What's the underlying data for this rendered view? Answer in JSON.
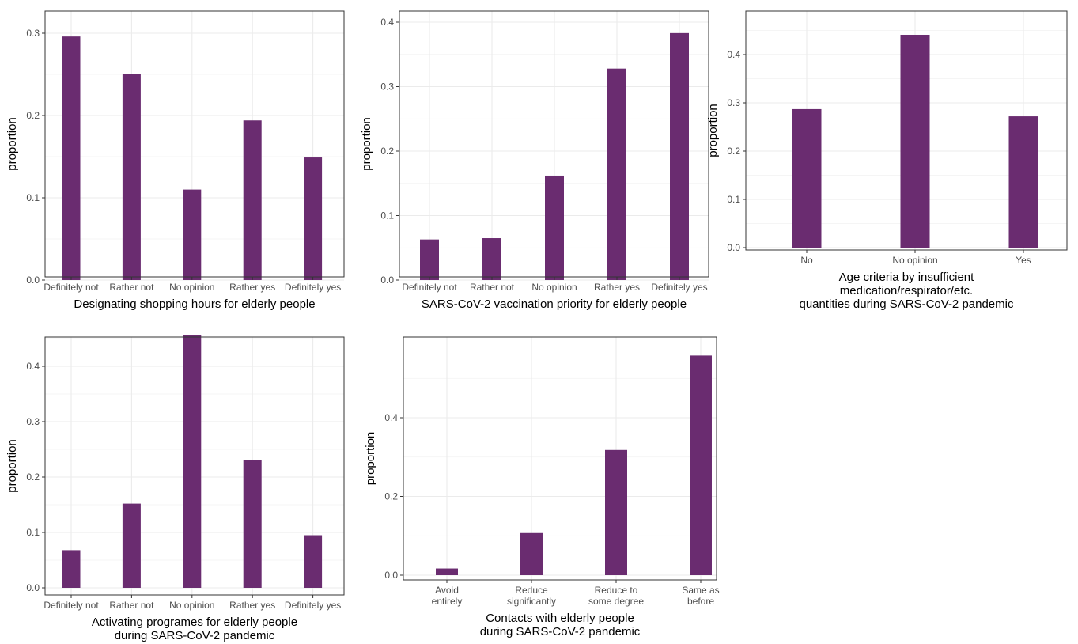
{
  "chart_data": [
    {
      "type": "bar",
      "categories": [
        [
          "Definitely not"
        ],
        [
          "Rather not"
        ],
        [
          "No opinion"
        ],
        [
          "Rather yes"
        ],
        [
          "Definitely yes"
        ]
      ],
      "values": [
        0.296,
        0.25,
        0.11,
        0.194,
        0.149
      ],
      "ylabel": "proportion",
      "xlabel": [
        "Designating shopping hours for elderly people"
      ],
      "ylim": [
        0,
        0.3
      ],
      "yticks": [
        0.0,
        0.1,
        0.2,
        0.3
      ],
      "ytick_labels": [
        "0.0",
        "0.1",
        "0.2",
        "0.3"
      ],
      "color": "#6a2c70",
      "grid": true
    },
    {
      "type": "bar",
      "categories": [
        [
          "Definitely not"
        ],
        [
          "Rather not"
        ],
        [
          "No opinion"
        ],
        [
          "Rather yes"
        ],
        [
          "Definitely yes"
        ]
      ],
      "values": [
        0.063,
        0.065,
        0.162,
        0.328,
        0.383
      ],
      "ylabel": "proportion",
      "xlabel": [
        "SARS-CoV-2 vaccination priority for elderly people"
      ],
      "ylim": [
        0,
        0.4
      ],
      "yticks": [
        0.0,
        0.1,
        0.2,
        0.3,
        0.4
      ],
      "ytick_labels": [
        "0.0",
        "0.1",
        "0.2",
        "0.3",
        "0.4"
      ],
      "color": "#6a2c70",
      "grid": true
    },
    {
      "type": "bar",
      "categories": [
        [
          "No"
        ],
        [
          "No opinion"
        ],
        [
          "Yes"
        ]
      ],
      "values": [
        0.287,
        0.441,
        0.272
      ],
      "ylabel": "proportion",
      "xlabel": [
        "Age criteria by insufficient",
        "medication/respirator/etc.",
        "quantities during SARS-CoV-2 pandemic"
      ],
      "ylim": [
        0,
        0.44
      ],
      "yticks": [
        0.0,
        0.1,
        0.2,
        0.3,
        0.4
      ],
      "ytick_labels": [
        "0.0",
        "0.1",
        "0.2",
        "0.3",
        "0.4"
      ],
      "color": "#6a2c70",
      "grid": true
    },
    {
      "type": "bar",
      "categories": [
        [
          "Definitely not"
        ],
        [
          "Rather not"
        ],
        [
          "No opinion"
        ],
        [
          "Rather yes"
        ],
        [
          "Definitely yes"
        ]
      ],
      "values": [
        0.068,
        0.152,
        0.456,
        0.23,
        0.095
      ],
      "ylabel": "proportion",
      "xlabel": [
        "Activating programes for elderly people",
        "during SARS-CoV-2 pandemic"
      ],
      "ylim": [
        0,
        0.46
      ],
      "yticks": [
        0.0,
        0.1,
        0.2,
        0.3,
        0.4
      ],
      "ytick_labels": [
        "0.0",
        "0.1",
        "0.2",
        "0.3",
        "0.4"
      ],
      "color": "#6a2c70",
      "grid": true
    },
    {
      "type": "bar",
      "categories": [
        [
          "Avoid",
          "entirely"
        ],
        [
          "Reduce",
          "significantly"
        ],
        [
          "Reduce to",
          "some degree"
        ],
        [
          "Same as",
          "before"
        ]
      ],
      "values": [
        0.017,
        0.107,
        0.318,
        0.558
      ],
      "ylabel": "proportion",
      "xlabel": [
        "Contacts with elderly people",
        "during SARS-CoV-2 pandemic"
      ],
      "ylim": [
        0,
        0.56
      ],
      "yticks": [
        0.0,
        0.2,
        0.4
      ],
      "ytick_labels": [
        "0.0",
        "0.2",
        "0.4"
      ],
      "color": "#6a2c70",
      "grid": true
    }
  ]
}
